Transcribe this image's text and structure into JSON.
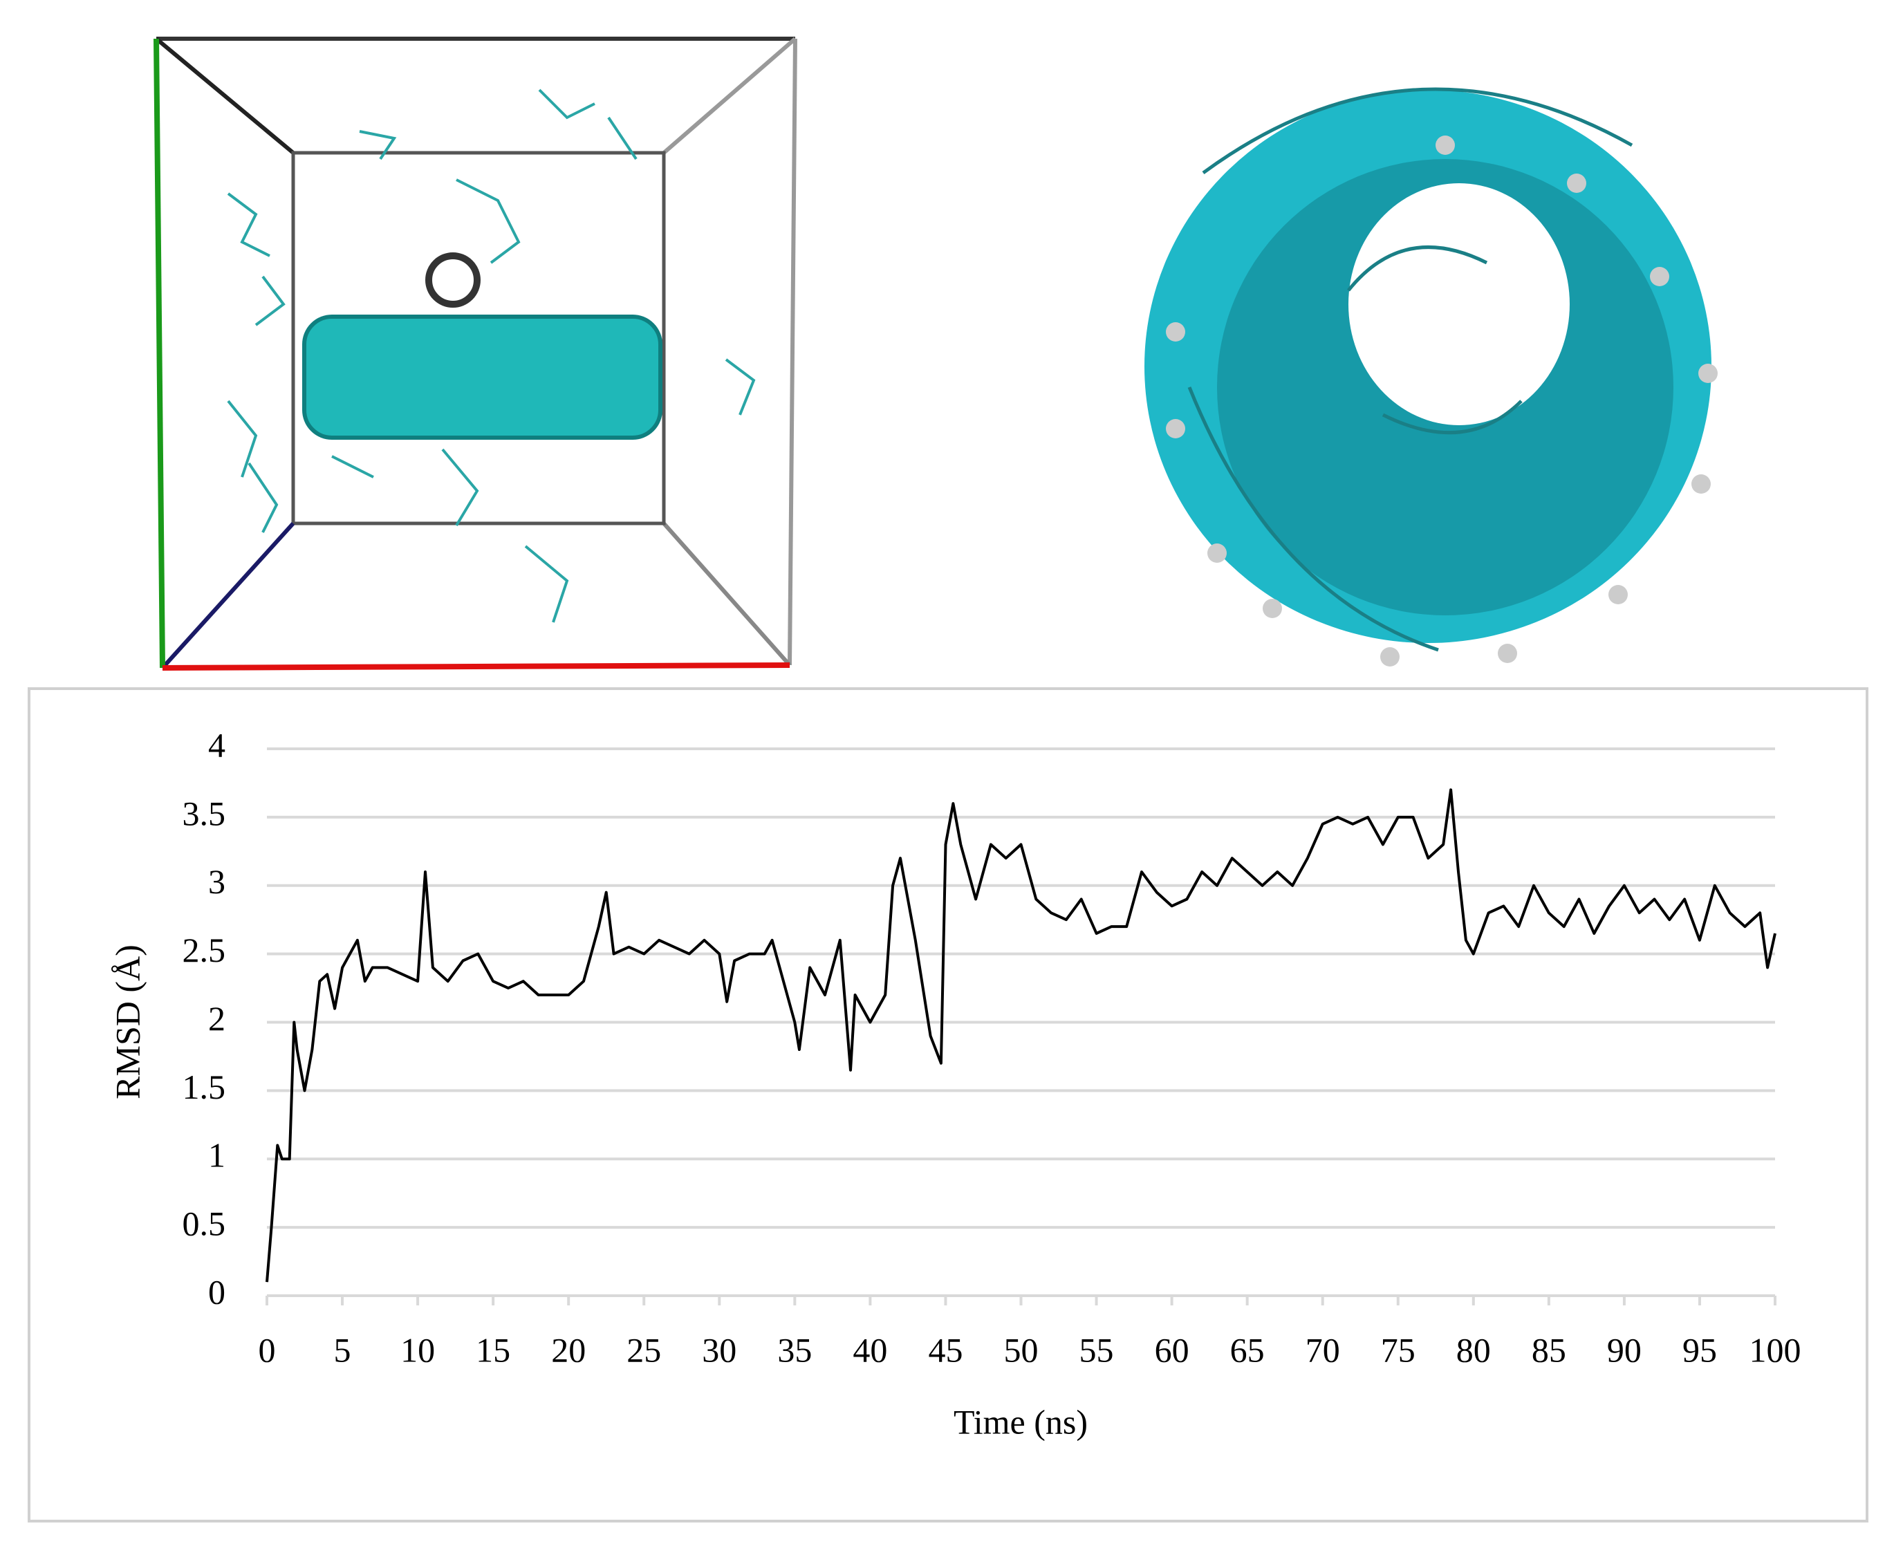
{
  "chart_data": {
    "type": "line",
    "x_label": "Time (ns)",
    "y_label": "RMSD (Å)",
    "color": "#000000",
    "grid": true,
    "xlim": [
      0,
      100
    ],
    "ylim": [
      0,
      4
    ],
    "xticks": [
      0,
      5,
      10,
      15,
      20,
      25,
      30,
      35,
      40,
      45,
      50,
      55,
      60,
      65,
      70,
      75,
      80,
      85,
      90,
      95,
      100
    ],
    "yticks": [
      0,
      0.5,
      1,
      1.5,
      2,
      2.5,
      3,
      3.5,
      4
    ],
    "x": [
      0,
      0.3,
      0.7,
      1,
      1.5,
      1.8,
      2,
      2.5,
      3,
      3.5,
      4,
      4.5,
      5,
      6,
      6.5,
      7,
      8,
      9,
      10,
      10.5,
      11,
      12,
      13,
      14,
      15,
      16,
      17,
      18,
      19,
      20,
      21,
      22,
      22.5,
      23,
      24,
      25,
      26,
      27,
      28,
      29,
      30,
      30.5,
      31,
      32,
      33,
      33.5,
      34,
      35,
      35.3,
      36,
      37,
      38,
      38.7,
      39,
      40,
      41,
      41.5,
      42,
      43,
      44,
      44.7,
      45,
      45.5,
      46,
      47,
      48,
      49,
      50,
      51,
      52,
      53,
      54,
      55,
      56,
      57,
      58,
      59,
      60,
      61,
      62,
      63,
      64,
      65,
      66,
      67,
      68,
      69,
      70,
      71,
      72,
      73,
      74,
      75,
      76,
      77,
      78,
      78.5,
      79,
      79.5,
      80,
      81,
      82,
      83,
      84,
      85,
      86,
      87,
      88,
      89,
      90,
      91,
      92,
      93,
      94,
      95,
      96,
      97,
      98,
      99,
      99.5,
      100
    ],
    "values": [
      0.1,
      0.5,
      1.1,
      1.0,
      1.0,
      2.0,
      1.8,
      1.5,
      1.8,
      2.3,
      2.35,
      2.1,
      2.4,
      2.6,
      2.3,
      2.4,
      2.4,
      2.35,
      2.3,
      3.1,
      2.4,
      2.3,
      2.45,
      2.5,
      2.3,
      2.25,
      2.3,
      2.2,
      2.2,
      2.2,
      2.3,
      2.7,
      2.95,
      2.5,
      2.55,
      2.5,
      2.6,
      2.55,
      2.5,
      2.6,
      2.5,
      2.15,
      2.45,
      2.5,
      2.5,
      2.6,
      2.4,
      2.0,
      1.8,
      2.4,
      2.2,
      2.6,
      1.65,
      2.2,
      2.0,
      2.2,
      3.0,
      3.2,
      2.6,
      1.9,
      1.7,
      3.3,
      3.6,
      3.3,
      2.9,
      3.3,
      3.2,
      3.3,
      2.9,
      2.8,
      2.75,
      2.9,
      2.65,
      2.7,
      2.7,
      3.1,
      2.95,
      2.85,
      2.9,
      3.1,
      3.0,
      3.2,
      3.1,
      3.0,
      3.1,
      3.0,
      3.2,
      3.45,
      3.5,
      3.45,
      3.5,
      3.3,
      3.5,
      3.5,
      3.2,
      3.3,
      3.7,
      3.1,
      2.6,
      2.5,
      2.8,
      2.85,
      2.7,
      3.0,
      2.8,
      2.7,
      2.9,
      2.65,
      2.85,
      3.0,
      2.8,
      2.9,
      2.75,
      2.9,
      2.6,
      3.0,
      2.8,
      2.7,
      2.8,
      2.4,
      2.65
    ]
  }
}
